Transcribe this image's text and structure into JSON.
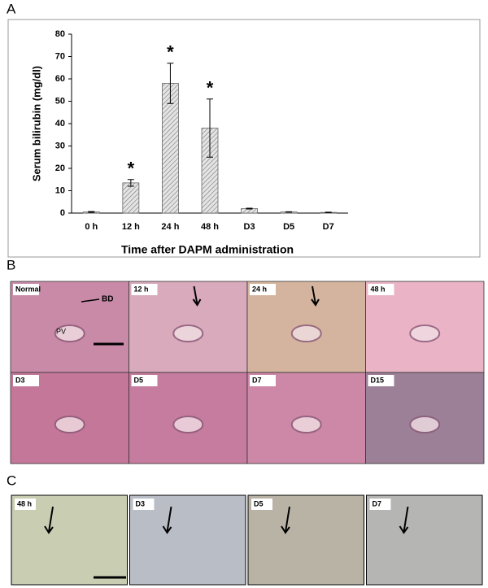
{
  "panel_labels": [
    "A",
    "B",
    "C"
  ],
  "chart_data": {
    "type": "bar",
    "categories": [
      "0 h",
      "12 h",
      "24 h",
      "48 h",
      "D3",
      "D5",
      "D7"
    ],
    "values": [
      0.5,
      13.5,
      58,
      38,
      2,
      0.5,
      0.3
    ],
    "errors": [
      0.2,
      1.5,
      9,
      13,
      0.2,
      0.1,
      0.1
    ],
    "significance": [
      null,
      "*",
      "*",
      "*",
      null,
      null,
      null
    ],
    "color": "#c8c8c8",
    "y_label": "Serum bilirubin (mg/dl)",
    "x_label": "Time after DAPM administration",
    "ylim": [
      0,
      80
    ],
    "yticks": [
      0,
      10,
      20,
      30,
      40,
      50,
      60,
      70,
      80
    ]
  },
  "panel_b_images": [
    "Normal",
    "12 h",
    "24 h",
    "48 h",
    "D3",
    "D5",
    "D7",
    "D15"
  ],
  "panel_b_annotations": [
    "BD",
    "PV"
  ],
  "panel_c_images": [
    "48 h",
    "D3",
    "D5",
    "D7"
  ]
}
